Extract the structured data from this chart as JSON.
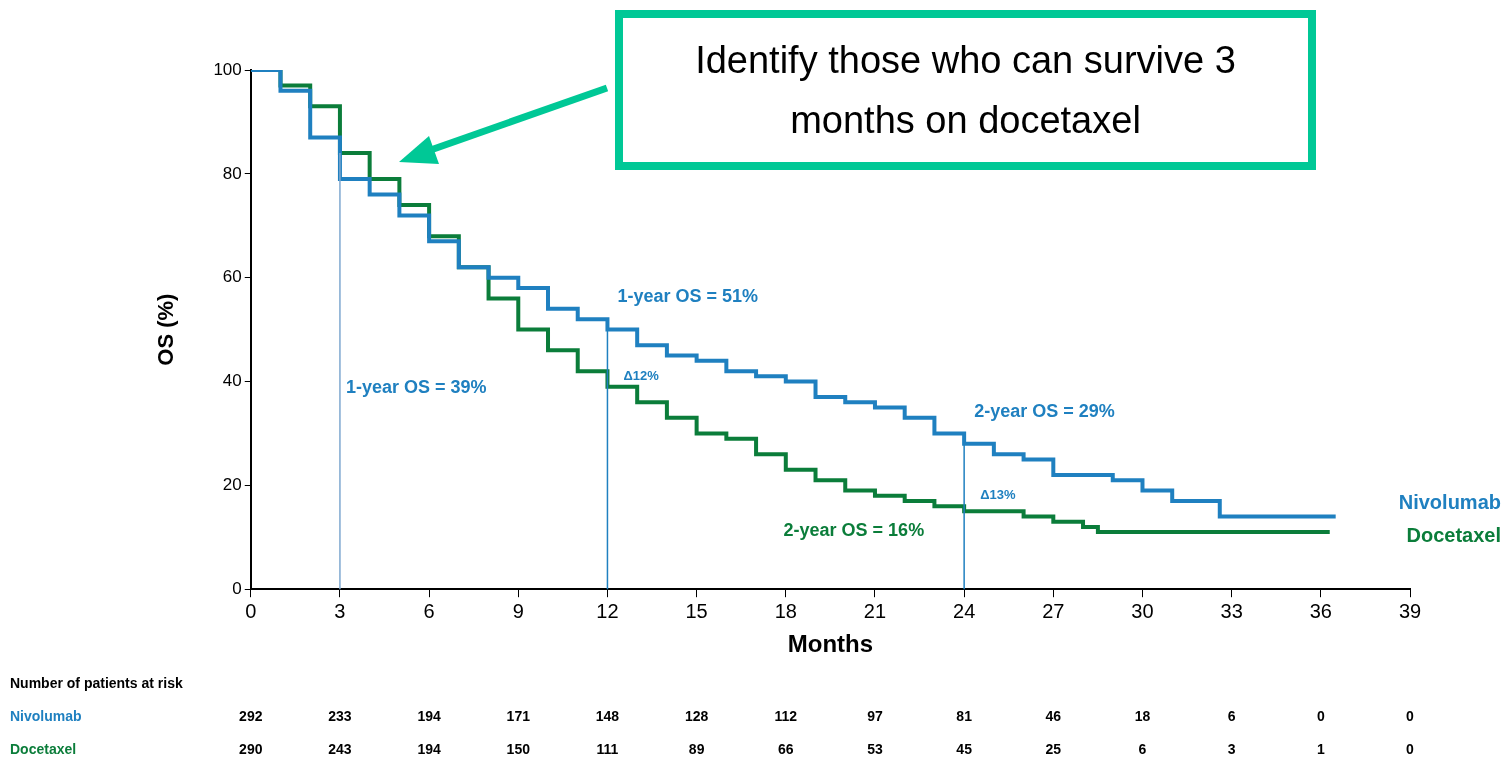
{
  "chart_data": {
    "type": "step",
    "xlabel": "Months",
    "ylabel": "OS (%)",
    "xlim": [
      0,
      39
    ],
    "xticks": [
      0,
      3,
      6,
      9,
      12,
      15,
      18,
      21,
      24,
      27,
      30,
      33,
      36,
      39
    ],
    "ylim": [
      0,
      100
    ],
    "yticks": [
      0,
      20,
      40,
      60,
      80,
      100
    ],
    "grid": false,
    "legend": false,
    "marker": "none",
    "series": [
      {
        "name": "Nivolumab",
        "color": "#1f80c0",
        "x": [
          0,
          1,
          2,
          3,
          4,
          5,
          6,
          7,
          8,
          9,
          10,
          11,
          12,
          13,
          14,
          15,
          16,
          17,
          18,
          19,
          20,
          21,
          22,
          23,
          24,
          25,
          26,
          27,
          28,
          29,
          30,
          31,
          32,
          32.6,
          36.5
        ],
        "values": [
          100,
          96,
          87,
          79,
          76,
          72,
          67,
          62,
          60,
          58,
          54,
          52,
          50,
          47,
          45,
          44,
          42,
          41,
          40,
          37,
          36,
          35,
          33,
          30,
          28,
          26,
          25,
          22,
          22,
          21,
          19,
          17,
          17,
          14,
          14
        ]
      },
      {
        "name": "Docetaxel",
        "color": "#0b7d3a",
        "x": [
          0,
          1,
          2,
          3,
          4,
          5,
          6,
          7,
          8,
          9,
          10,
          11,
          12,
          13,
          14,
          15,
          16,
          17,
          18,
          19,
          20,
          21,
          22,
          23,
          24,
          25,
          26,
          27,
          28,
          28.5,
          36.3
        ],
        "values": [
          100,
          97,
          93,
          84,
          79,
          74,
          68,
          62,
          56,
          50,
          46,
          42,
          39,
          36,
          33,
          30,
          29,
          26,
          23,
          21,
          19,
          18,
          17,
          16,
          15,
          15,
          14,
          13,
          12,
          11,
          11
        ]
      }
    ],
    "ref_lines": [
      {
        "axis": "x",
        "value": 3,
        "color": "#7fa8d0"
      },
      {
        "axis": "x",
        "value": 12,
        "color": "#1f80c0"
      },
      {
        "axis": "x",
        "value": 24,
        "color": "#1f80c0"
      }
    ],
    "annotations": [
      {
        "text": "1-year OS = 51%",
        "x": 12,
        "y": 51
      },
      {
        "text": "Δ12%",
        "x": 12,
        "y": 45
      },
      {
        "text": "1-year OS = 39%",
        "x": 3,
        "y": 39
      },
      {
        "text": "2-year OS = 29%",
        "x": 24,
        "y": 29
      },
      {
        "text": "Δ13%",
        "x": 24,
        "y": 22
      },
      {
        "text": "2-year OS = 16%",
        "x": 24,
        "y": 16
      },
      "Identify those who can survive 3 months on docetaxel",
      "Number of patients at risk",
      "Nivolumab 292 233 194 171 148 128 112 97 81 46 18 6 0 0",
      "Docetaxel 290 243 194 150 111 89 66 53 45 25 6 3 1 0"
    ]
  }
}
